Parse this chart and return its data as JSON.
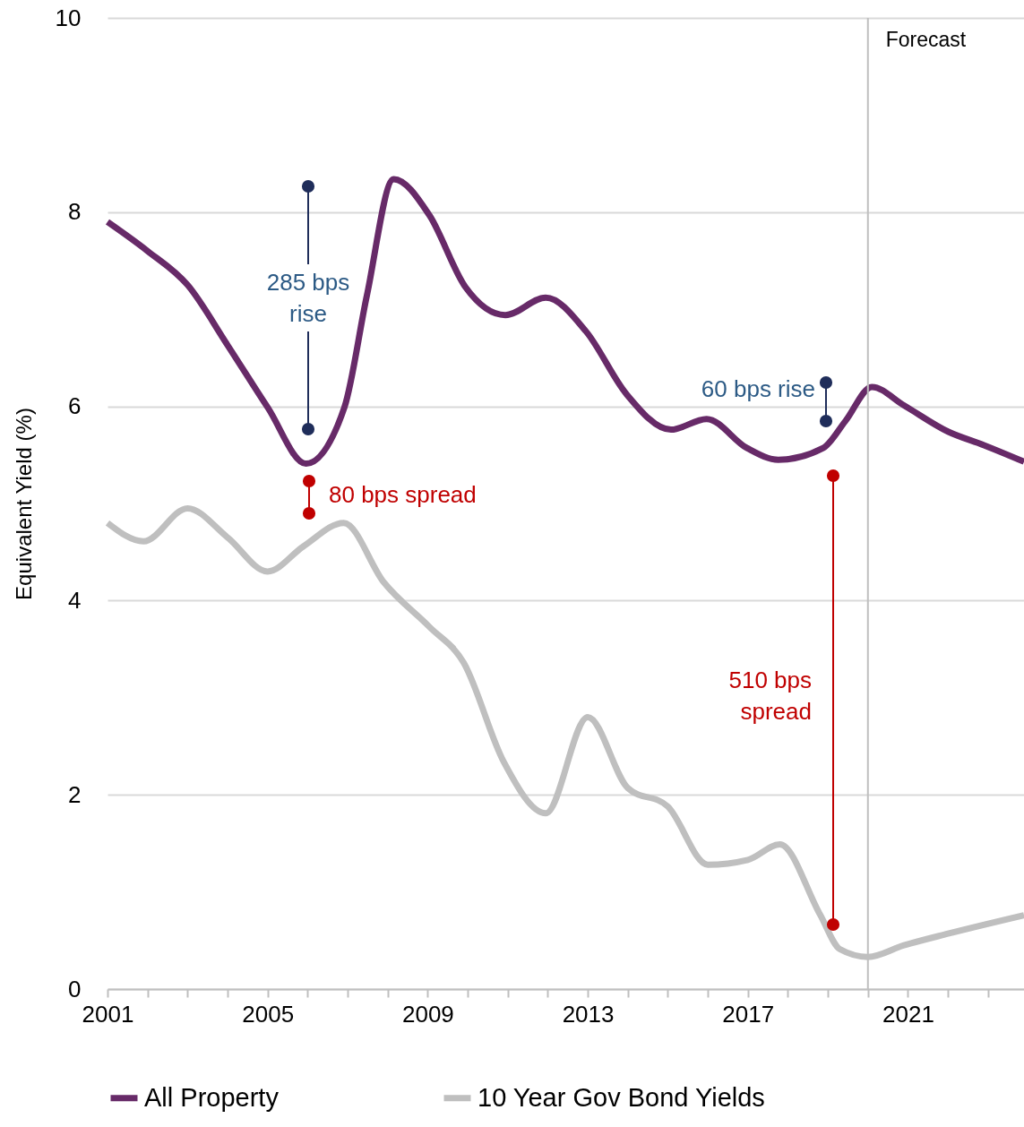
{
  "chart_data": {
    "type": "line",
    "ylabel": "Equivalent Yield (%)",
    "xlim": [
      2001,
      2023.9
    ],
    "xticks": [
      2001,
      {
        "value": 2002,
        "label": null
      },
      {
        "value": 2003,
        "label": null
      },
      {
        "value": 2004,
        "label": null
      },
      2005,
      {
        "value": 2006,
        "label": null
      },
      {
        "value": 2007,
        "label": null
      },
      {
        "value": 2008,
        "label": null
      },
      2009,
      {
        "value": 2010,
        "label": null
      },
      {
        "value": 2011,
        "label": null
      },
      {
        "value": 2012,
        "label": null
      },
      2013,
      {
        "value": 2014,
        "label": null
      },
      {
        "value": 2015,
        "label": null
      },
      {
        "value": 2016,
        "label": null
      },
      2017,
      {
        "value": 2018,
        "label": null
      },
      {
        "value": 2019,
        "label": null
      },
      {
        "value": 2020,
        "label": null
      },
      2021,
      {
        "value": 2022,
        "label": null
      },
      {
        "value": 2023,
        "label": null
      }
    ],
    "ylim": [
      0,
      10
    ],
    "yticks": [
      0,
      2,
      4,
      6,
      8,
      10
    ],
    "grid": "y",
    "legend": "bottom",
    "line_style": "solid",
    "marker": "none",
    "series": [
      {
        "name": "All Property",
        "color": "#672a68",
        "x": [
          2001,
          2002,
          2003,
          2004,
          2005,
          2005.96,
          2006.92,
          2007.48,
          2008.15,
          2009.04,
          2009.94,
          2010.94,
          2011.95,
          2012.96,
          2013.96,
          2015.08,
          2015.97,
          2016.98,
          2017.76,
          2018.88,
          2019.44,
          2020.1,
          2020.9,
          2022,
          2022.9,
          2023.9
        ],
        "values": [
          7.9,
          7.6,
          7.25,
          6.63,
          5.99,
          5.41,
          5.99,
          7.14,
          8.34,
          7.97,
          7.23,
          6.94,
          7.12,
          6.77,
          6.13,
          5.76,
          5.87,
          5.57,
          5.45,
          5.57,
          5.85,
          6.2,
          6.01,
          5.74,
          5.6,
          5.43
        ]
      },
      {
        "name": "10 Year Gov Bond Yields",
        "color": "#bfbfbf",
        "x": [
          2001,
          2001.9,
          2003,
          2004,
          2005,
          2005.9,
          2006.9,
          2007.9,
          2009.04,
          2009.9,
          2010.9,
          2011.95,
          2013,
          2014,
          2015,
          2016,
          2017,
          2017.8,
          2018.8,
          2019.3,
          2020,
          2020.9,
          2022,
          2023.9
        ],
        "values": [
          4.8,
          4.61,
          4.95,
          4.65,
          4.3,
          4.56,
          4.8,
          4.19,
          3.73,
          3.36,
          2.34,
          1.81,
          2.8,
          2.07,
          1.88,
          1.28,
          1.33,
          1.49,
          0.77,
          0.41,
          0.33,
          0.45,
          0.57,
          0.76
        ]
      }
    ],
    "ref_lines": [
      {
        "axis": "x",
        "value": 2020,
        "label": "Forecast",
        "color": "#bfbfbf"
      }
    ],
    "annotations": [
      "285 bps\nrise",
      "80 bps spread",
      "60 bps rise",
      "510 bps\nspread"
    ]
  }
}
